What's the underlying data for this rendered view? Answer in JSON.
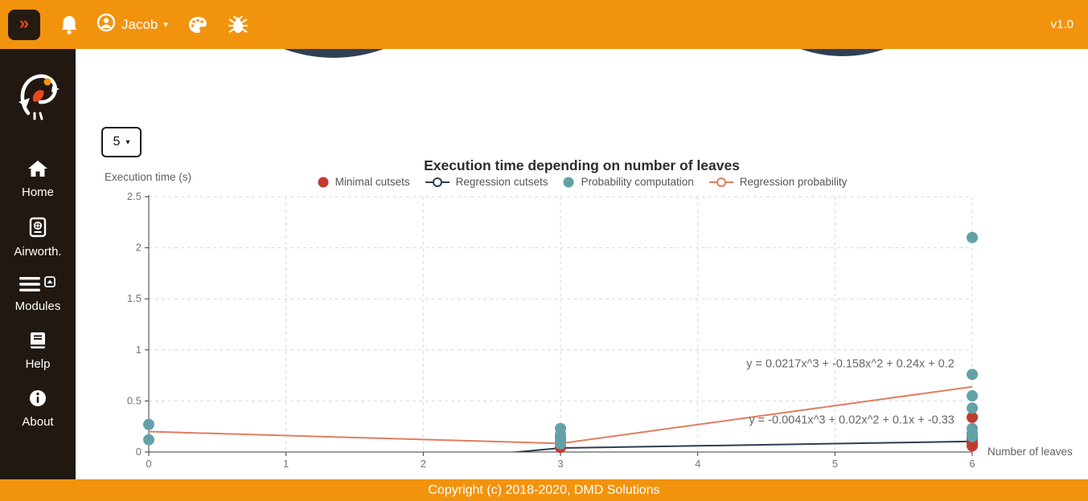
{
  "topbar": {
    "user": "Jacob",
    "version": "v1.0"
  },
  "glyphs": {
    "sidebar_toggle": "»",
    "caret_down": "▾"
  },
  "sidebar": {
    "items": [
      {
        "label": "Home",
        "icon": "home-icon"
      },
      {
        "label": "Airworth.",
        "icon": "passport-icon"
      },
      {
        "label": "Modules",
        "icon": "menu-icon"
      },
      {
        "label": "Help",
        "icon": "book-icon"
      },
      {
        "label": "About",
        "icon": "info-icon"
      }
    ]
  },
  "controls": {
    "leaves_dropdown_value": "5"
  },
  "footer": {
    "text": "Copyright (c) 2018-2020, DMD Solutions"
  },
  "chart_data": {
    "type": "scatter",
    "title": "Execution time depending on number of leaves",
    "xlabel": "Number of leaves",
    "ylabel": "Execution time (s)",
    "xlim": [
      0,
      6
    ],
    "ylim": [
      0,
      2.5
    ],
    "x_ticks": [
      0,
      1,
      2,
      3,
      4,
      5,
      6
    ],
    "y_ticks": [
      0,
      0.5,
      1,
      1.5,
      2,
      2.5
    ],
    "grid": "dashed",
    "legend_position": "top",
    "series": [
      {
        "name": "Minimal cutsets",
        "type": "scatter",
        "marker": "dot",
        "color": "#c13a2d",
        "points": [
          [
            3,
            0.045
          ],
          [
            6,
            0.34
          ],
          [
            6,
            0.18
          ],
          [
            6,
            0.15
          ],
          [
            6,
            0.12
          ],
          [
            6,
            0.09
          ],
          [
            6,
            0.06
          ]
        ]
      },
      {
        "name": "Regression cutsets",
        "type": "line",
        "marker": "line-circle",
        "color": "#2c3e50",
        "equation": "y = -0.0041x^3 + 0.02x^2 + 0.1x + -0.33",
        "points": [
          [
            0,
            -0.33
          ],
          [
            3,
            0.039
          ],
          [
            6,
            0.104
          ]
        ]
      },
      {
        "name": "Probability computation",
        "type": "scatter",
        "marker": "dot",
        "color": "#63a1a9",
        "points": [
          [
            0,
            0.27
          ],
          [
            0,
            0.12
          ],
          [
            3,
            0.23
          ],
          [
            3,
            0.17
          ],
          [
            3,
            0.14
          ],
          [
            3,
            0.11
          ],
          [
            3,
            0.08
          ],
          [
            6,
            2.1
          ],
          [
            6,
            0.76
          ],
          [
            6,
            0.55
          ],
          [
            6,
            0.43
          ],
          [
            6,
            0.23
          ],
          [
            6,
            0.18
          ],
          [
            6,
            0.15
          ]
        ]
      },
      {
        "name": "Regression probability",
        "type": "line",
        "marker": "line-circle",
        "color": "#e07d5e",
        "equation": "y = 0.0217x^3 + -0.158x^2 + 0.24x + 0.2",
        "points": [
          [
            0,
            0.2
          ],
          [
            3,
            0.084
          ],
          [
            6,
            0.639
          ]
        ]
      }
    ],
    "annotations": [
      {
        "text": "y = 0.0217x^3 + -0.158x^2 + 0.24x + 0.2",
        "x": 5.87,
        "y": 0.86,
        "anchor": "end"
      },
      {
        "text": "y = -0.0041x^3 + 0.02x^2 + 0.1x + -0.33",
        "x": 5.87,
        "y": 0.31,
        "anchor": "end"
      }
    ]
  }
}
